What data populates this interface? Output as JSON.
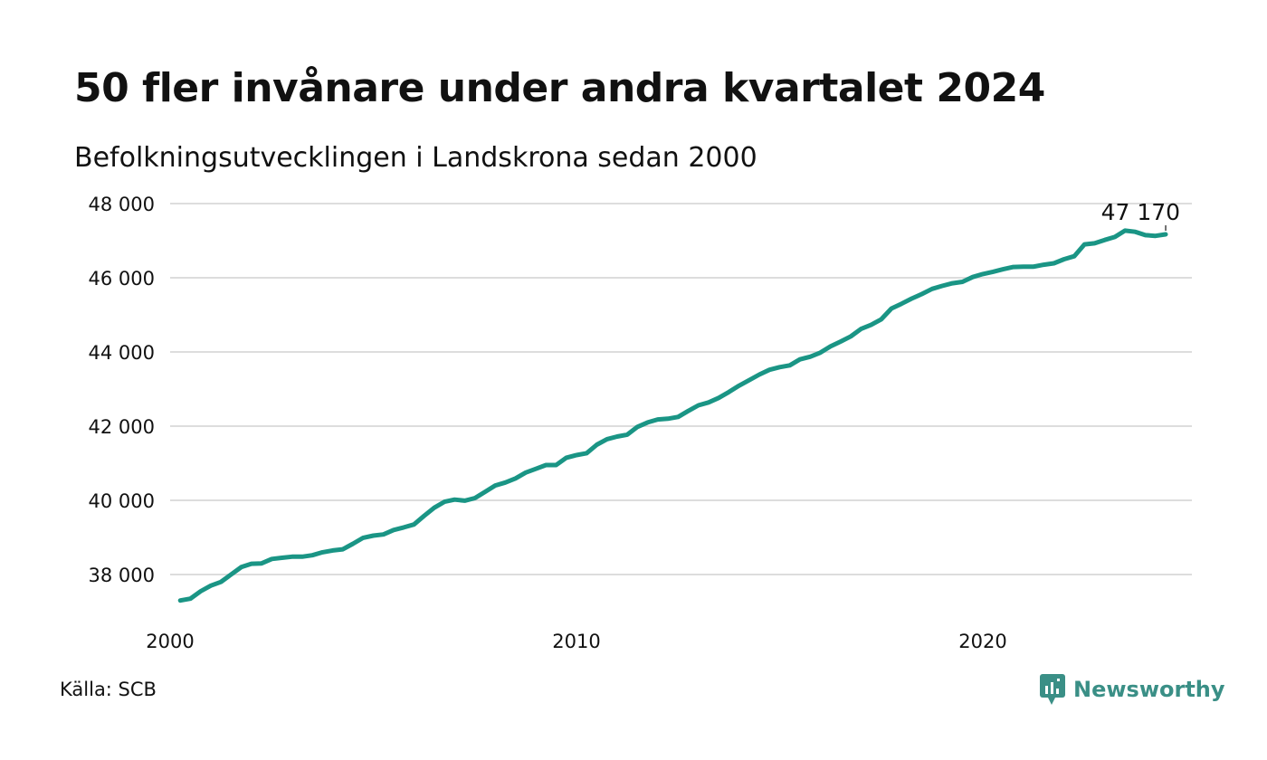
{
  "title": "50 fler invånare under andra kvartalet 2024",
  "subtitle": "Befolkningsutvecklingen i Landskrona sedan 2000",
  "source": "Källa: SCB",
  "brand": {
    "name": "Newsworthy",
    "icon": "newsworthy-logo-icon"
  },
  "colors": {
    "line": "#1a9585",
    "grid": "#dddddd",
    "brand": "#3a8f86",
    "text": "#111111"
  },
  "chart_data": {
    "type": "line",
    "title": "50 fler invånare under andra kvartalet 2024",
    "subtitle": "Befolkningsutvecklingen i Landskrona sedan 2000",
    "xlabel": "",
    "ylabel": "",
    "xlim": [
      2000,
      2025
    ],
    "ylim": [
      36700,
      48000
    ],
    "y_ticks": [
      38000,
      40000,
      42000,
      44000,
      46000,
      48000
    ],
    "y_tick_labels": [
      "38 000",
      "40 000",
      "42 000",
      "44 000",
      "46 000",
      "48 000"
    ],
    "x_ticks": [
      2000,
      2010,
      2020
    ],
    "x_tick_labels": [
      "2000",
      "2010",
      "2020"
    ],
    "grid": "horizontal",
    "last_value_label": "47 170",
    "series": [
      {
        "values": [
          [
            2000.25,
            37300
          ],
          [
            2000.5,
            37350
          ],
          [
            2000.75,
            37550
          ],
          [
            2001.0,
            37700
          ],
          [
            2001.25,
            37800
          ],
          [
            2001.5,
            38000
          ],
          [
            2001.75,
            38200
          ],
          [
            2002.0,
            38290
          ],
          [
            2002.25,
            38300
          ],
          [
            2002.5,
            38420
          ],
          [
            2002.75,
            38450
          ],
          [
            2003.0,
            38480
          ],
          [
            2003.25,
            38480
          ],
          [
            2003.5,
            38520
          ],
          [
            2003.75,
            38600
          ],
          [
            2004.0,
            38650
          ],
          [
            2004.25,
            38680
          ],
          [
            2004.5,
            38830
          ],
          [
            2004.75,
            38990
          ],
          [
            2005.0,
            39050
          ],
          [
            2005.25,
            39080
          ],
          [
            2005.5,
            39200
          ],
          [
            2005.75,
            39270
          ],
          [
            2006.0,
            39350
          ],
          [
            2006.25,
            39580
          ],
          [
            2006.5,
            39800
          ],
          [
            2006.75,
            39960
          ],
          [
            2007.0,
            40020
          ],
          [
            2007.25,
            39990
          ],
          [
            2007.5,
            40060
          ],
          [
            2007.75,
            40230
          ],
          [
            2008.0,
            40400
          ],
          [
            2008.25,
            40480
          ],
          [
            2008.5,
            40590
          ],
          [
            2008.75,
            40750
          ],
          [
            2009.0,
            40850
          ],
          [
            2009.25,
            40950
          ],
          [
            2009.5,
            40950
          ],
          [
            2009.75,
            41150
          ],
          [
            2010.0,
            41220
          ],
          [
            2010.25,
            41270
          ],
          [
            2010.5,
            41500
          ],
          [
            2010.75,
            41650
          ],
          [
            2011.0,
            41720
          ],
          [
            2011.25,
            41770
          ],
          [
            2011.5,
            41980
          ],
          [
            2011.75,
            42100
          ],
          [
            2012.0,
            42180
          ],
          [
            2012.25,
            42200
          ],
          [
            2012.5,
            42250
          ],
          [
            2012.75,
            42410
          ],
          [
            2013.0,
            42560
          ],
          [
            2013.25,
            42640
          ],
          [
            2013.5,
            42760
          ],
          [
            2013.75,
            42920
          ],
          [
            2014.0,
            43090
          ],
          [
            2014.25,
            43240
          ],
          [
            2014.5,
            43390
          ],
          [
            2014.75,
            43520
          ],
          [
            2015.0,
            43590
          ],
          [
            2015.25,
            43640
          ],
          [
            2015.5,
            43800
          ],
          [
            2015.75,
            43870
          ],
          [
            2016.0,
            43980
          ],
          [
            2016.25,
            44150
          ],
          [
            2016.5,
            44280
          ],
          [
            2016.75,
            44420
          ],
          [
            2017.0,
            44620
          ],
          [
            2017.25,
            44730
          ],
          [
            2017.5,
            44880
          ],
          [
            2017.75,
            45170
          ],
          [
            2018.0,
            45300
          ],
          [
            2018.25,
            45440
          ],
          [
            2018.5,
            45560
          ],
          [
            2018.75,
            45700
          ],
          [
            2019.0,
            45780
          ],
          [
            2019.25,
            45850
          ],
          [
            2019.5,
            45890
          ],
          [
            2019.75,
            46020
          ],
          [
            2020.0,
            46100
          ],
          [
            2020.25,
            46160
          ],
          [
            2020.5,
            46230
          ],
          [
            2020.75,
            46290
          ],
          [
            2021.0,
            46300
          ],
          [
            2021.25,
            46300
          ],
          [
            2021.5,
            46350
          ],
          [
            2021.75,
            46390
          ],
          [
            2022.0,
            46500
          ],
          [
            2022.25,
            46580
          ],
          [
            2022.5,
            46900
          ],
          [
            2022.75,
            46930
          ],
          [
            2023.0,
            47020
          ],
          [
            2023.25,
            47100
          ],
          [
            2023.5,
            47270
          ],
          [
            2023.75,
            47240
          ],
          [
            2024.0,
            47150
          ],
          [
            2024.25,
            47130
          ],
          [
            2024.5,
            47170
          ]
        ]
      }
    ]
  }
}
